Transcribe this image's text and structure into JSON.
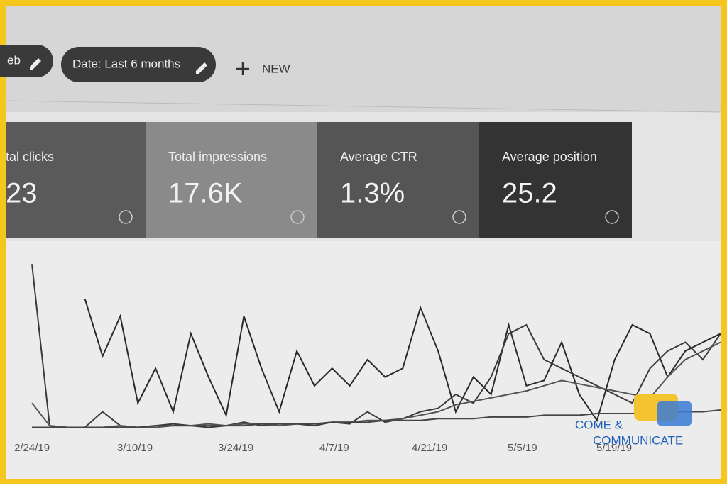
{
  "toolbar": {
    "chips": [
      "eb",
      "Date: Last 6 months"
    ],
    "new_button": "NEW"
  },
  "metrics": [
    {
      "label": "tal clicks",
      "value": "23",
      "color": "#5a5a5a"
    },
    {
      "label": "Total impressions",
      "value": "17.6K",
      "color": "#8a8a8a"
    },
    {
      "label": "Average CTR",
      "value": "1.3%",
      "color": "#555555"
    },
    {
      "label": "Average position",
      "value": "25.2",
      "color": "#333333"
    }
  ],
  "chart": {
    "x_labels": [
      "2/24/19",
      "3/10/19",
      "3/24/19",
      "4/7/19",
      "4/21/19",
      "5/5/19",
      "5/19/19"
    ],
    "ylim": [
      0,
      100
    ],
    "series": [
      {
        "color": "#2a2a2a",
        "values": [
          null,
          null,
          null,
          75,
          42,
          65,
          15,
          35,
          10,
          55,
          30,
          8,
          65,
          35,
          10,
          45,
          25,
          35,
          25,
          40,
          30,
          35,
          70,
          45,
          10,
          30,
          20,
          60,
          25,
          28,
          50,
          20,
          5,
          40,
          60,
          55,
          30,
          45,
          50,
          55
        ]
      },
      {
        "color": "#3a3a3a",
        "values": [
          95,
          2,
          1,
          1,
          10,
          2,
          1,
          2,
          3,
          2,
          1,
          2,
          4,
          2,
          3,
          3,
          2,
          4,
          3,
          10,
          4,
          6,
          10,
          12,
          20,
          15,
          30,
          55,
          60,
          40,
          35,
          30,
          25,
          20,
          15,
          35,
          45,
          50,
          40,
          55
        ]
      },
      {
        "color": "#555555",
        "values": [
          15,
          2,
          1,
          1,
          1,
          2,
          1,
          1,
          2,
          2,
          3,
          2,
          3,
          3,
          2,
          3,
          3,
          4,
          4,
          5,
          5,
          6,
          8,
          10,
          14,
          16,
          18,
          20,
          22,
          25,
          28,
          26,
          24,
          22,
          20,
          18,
          30,
          40,
          45,
          50
        ]
      },
      {
        "color": "#444444",
        "values": [
          1,
          1,
          1,
          1,
          1,
          1,
          1,
          2,
          2,
          2,
          2,
          2,
          2,
          3,
          3,
          3,
          3,
          4,
          4,
          4,
          5,
          5,
          5,
          6,
          6,
          6,
          7,
          7,
          7,
          8,
          8,
          8,
          9,
          9,
          9,
          10,
          10,
          10,
          10,
          11
        ]
      }
    ]
  },
  "logo": {
    "line1": "COME &",
    "line2": "COMMUNICATE"
  }
}
